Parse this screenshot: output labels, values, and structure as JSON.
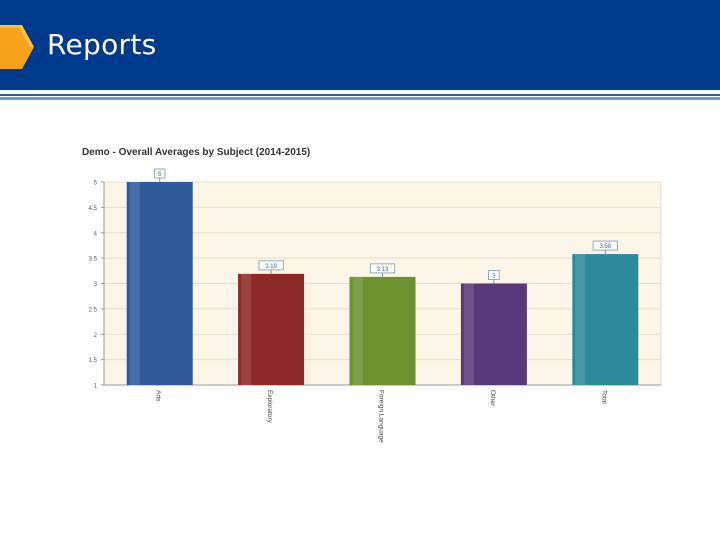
{
  "header": {
    "title": "Reports"
  },
  "colors": {
    "header_bg": "#003a8c",
    "arrow": "#f7a21b",
    "plot_bg": "#faf5e6",
    "bars": [
      "#2f5a9a",
      "#8c2a2a",
      "#6e9130",
      "#583a7c",
      "#2d8a9c"
    ]
  },
  "chart_data": {
    "type": "bar",
    "title": "Demo - Overall Averages by Subject (2014-2015)",
    "categories": [
      "Arts",
      "Exploratory",
      "Foreign Language",
      "Other",
      "Total"
    ],
    "values": [
      5,
      3.19,
      3.13,
      3,
      3.58
    ],
    "data_labels": [
      "5",
      "3.19",
      "3.13",
      "3",
      "3.58"
    ],
    "ylim": [
      1,
      5
    ],
    "yticks": [
      "1",
      "1.5",
      "2",
      "2.5",
      "3",
      "3.5",
      "4",
      "4.5",
      "5"
    ],
    "xlabel": "",
    "ylabel": "",
    "grid": true,
    "legend": "none"
  }
}
